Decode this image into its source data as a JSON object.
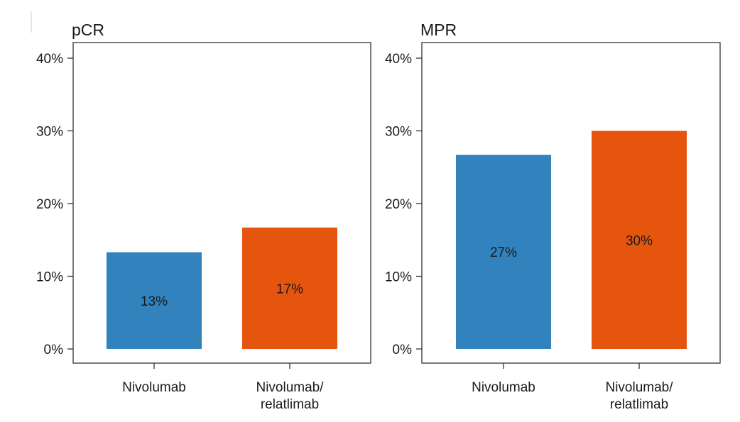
{
  "chart_data": [
    {
      "type": "bar",
      "title": "pCR",
      "categories": [
        "Nivolumab",
        "Nivolumab/\nrelatlimab"
      ],
      "values": [
        13.3,
        16.7
      ],
      "data_labels": [
        "13%",
        "17%"
      ],
      "colors": [
        "#3182bd",
        "#e6550d"
      ],
      "ylim": [
        0,
        40
      ],
      "yticks": [
        "0%",
        "10%",
        "20%",
        "30%",
        "40%"
      ],
      "grid": false,
      "legend": "none"
    },
    {
      "type": "bar",
      "title": "MPR",
      "categories": [
        "Nivolumab",
        "Nivolumab/\nrelatlimab"
      ],
      "values": [
        26.7,
        30.0
      ],
      "data_labels": [
        "27%",
        "30%"
      ],
      "colors": [
        "#3182bd",
        "#e6550d"
      ],
      "ylim": [
        0,
        40
      ],
      "yticks": [
        "0%",
        "10%",
        "20%",
        "30%",
        "40%"
      ],
      "grid": false,
      "legend": "none"
    }
  ]
}
